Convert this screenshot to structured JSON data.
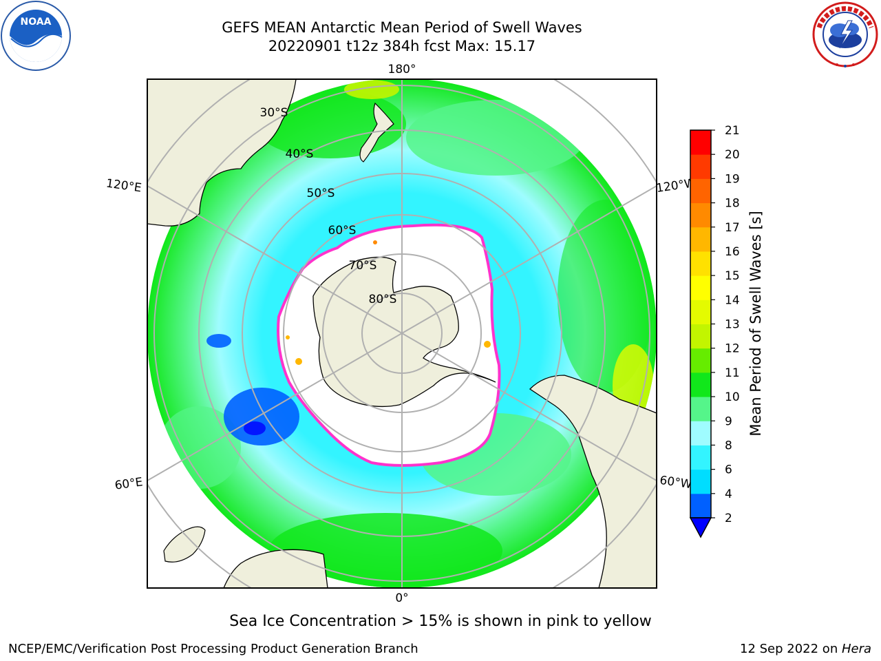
{
  "title": {
    "line1": "GEFS MEAN Antarctic Mean Period of Swell Waves",
    "line2": "20220901 t12z 384h fcst   Max: 15.17"
  },
  "logos": {
    "left": "NOAA",
    "right": "NATIONAL WEATHER SERVICE"
  },
  "map": {
    "projection": "south-polar-stereographic",
    "longitude_labels": {
      "top": "180°",
      "bottom": "0°",
      "upper_left": "120°E",
      "upper_right": "120°W",
      "lower_left": "60°E",
      "lower_right": "60°W"
    },
    "latitude_labels": [
      "30°S",
      "40°S",
      "50°S",
      "60°S",
      "70°S",
      "80°S"
    ],
    "colors": {
      "land": "#efefdc",
      "open_water": "#ffffff",
      "grid": "#b0b0b0",
      "ice_edge": "#ff33cc"
    }
  },
  "colorbar": {
    "label": "Mean Period of Swell Waves [s]",
    "ticks": [
      "2",
      "4",
      "6",
      "8",
      "9",
      "10",
      "11",
      "12",
      "13",
      "14",
      "15",
      "16",
      "17",
      "18",
      "19",
      "20",
      "21"
    ],
    "colors": [
      "#0060ff",
      "#00ddff",
      "#33f4ff",
      "#9ffcff",
      "#55f58a",
      "#11e71b",
      "#66ec00",
      "#c2f500",
      "#e4fb00",
      "#ffff00",
      "#ffe100",
      "#ffb700",
      "#ff8a00",
      "#ff6400",
      "#ff3a00",
      "#ff0000"
    ],
    "under_color": "#0000ff"
  },
  "caption": "Sea Ice Concentration > 15% is shown in pink to yellow",
  "footer": {
    "left": "NCEP/EMC/Verification Post Processing Product Generation Branch",
    "date": "12 Sep 2022 on ",
    "machine": "Hera"
  }
}
